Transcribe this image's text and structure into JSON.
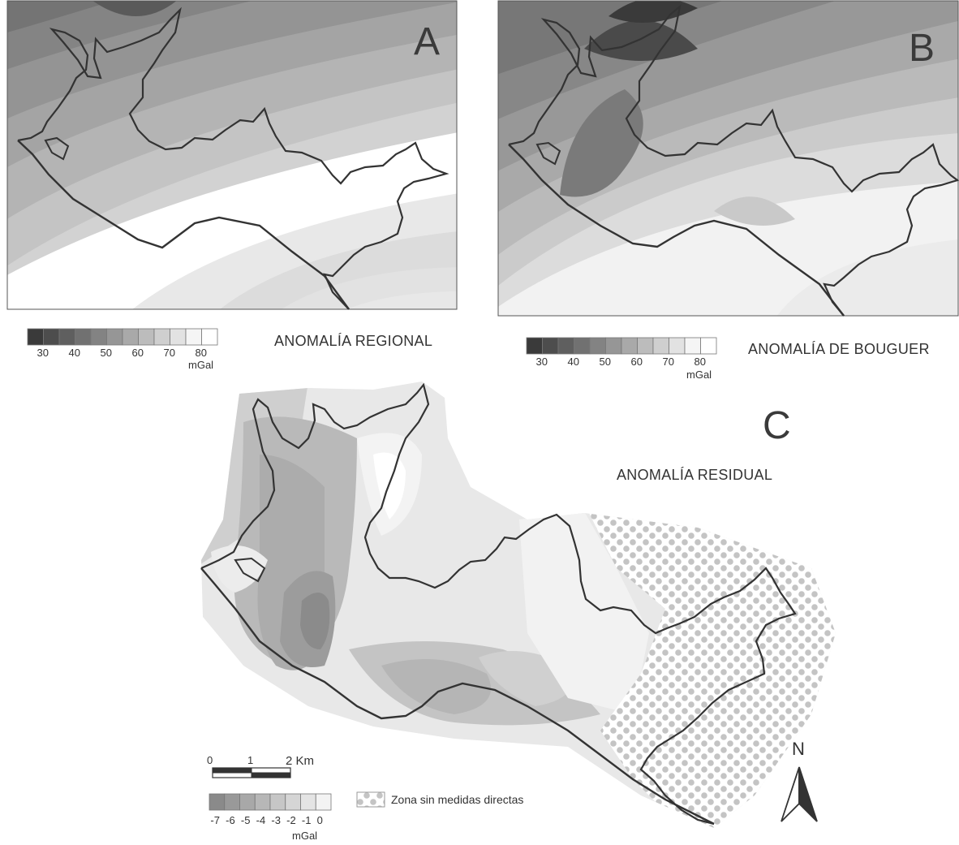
{
  "panels": {
    "A": {
      "letter": "A",
      "title": "ANOMALÍA REGIONAL",
      "legend": {
        "ticks": [
          "30",
          "40",
          "50",
          "60",
          "70",
          "80"
        ],
        "unit": "mGal",
        "colors": [
          "#3a3a3a",
          "#4d4d4d",
          "#5f5f5f",
          "#717171",
          "#838383",
          "#969696",
          "#a9a9a9",
          "#bcbcbc",
          "#cfcfcf",
          "#e2e2e2",
          "#f5f5f5",
          "#ffffff"
        ]
      }
    },
    "B": {
      "letter": "B",
      "title": "ANOMALÍA DE BOUGUER",
      "legend": {
        "ticks": [
          "30",
          "40",
          "50",
          "60",
          "70",
          "80"
        ],
        "unit": "mGal",
        "colors": [
          "#3a3a3a",
          "#4d4d4d",
          "#5f5f5f",
          "#717171",
          "#838383",
          "#969696",
          "#a9a9a9",
          "#bcbcbc",
          "#cfcfcf",
          "#e2e2e2",
          "#f5f5f5",
          "#ffffff"
        ]
      }
    },
    "C": {
      "letter": "C",
      "title": "ANOMALÍA RESIDUAL",
      "legend": {
        "ticks": [
          "-7",
          "-6",
          "-5",
          "-4",
          "-3",
          "-2",
          "-1",
          "0"
        ],
        "unit": "mGal",
        "colors": [
          "#8a8a8a",
          "#999999",
          "#a8a8a8",
          "#b7b7b7",
          "#c6c6c6",
          "#d5d5d5",
          "#e4e4e4",
          "#f3f3f3"
        ]
      },
      "scale_bar": {
        "labels": [
          "0",
          "1",
          "2 Km"
        ]
      },
      "no_data_legend": "Zona sin medidas directas",
      "north_label": "N"
    }
  }
}
